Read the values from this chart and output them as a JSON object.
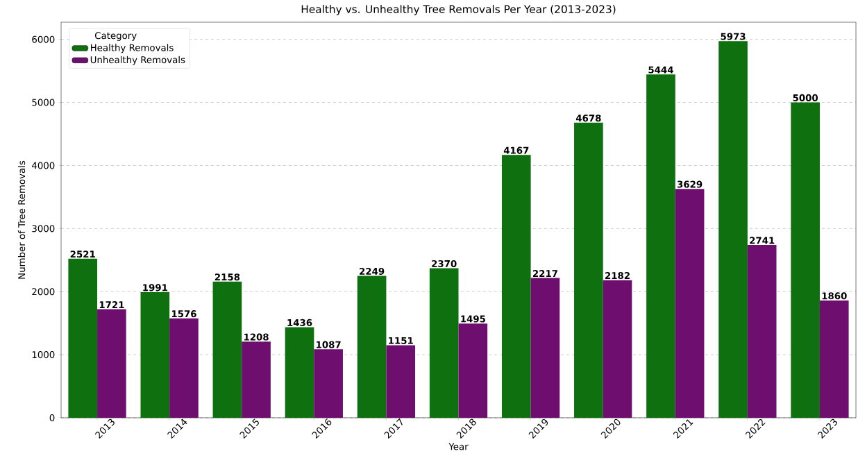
{
  "chart_data": {
    "type": "bar",
    "title": "Healthy vs. Unhealthy Tree Removals Per Year (2013-2023)",
    "xlabel": "Year",
    "ylabel": "Number of Tree Removals",
    "legend_title": "Category",
    "categories": [
      "2013",
      "2014",
      "2015",
      "2016",
      "2017",
      "2018",
      "2019",
      "2020",
      "2021",
      "2022",
      "2023"
    ],
    "series": [
      {
        "name": "Healthy Removals",
        "color": "#0e700e",
        "values": [
          2521,
          1991,
          2158,
          1436,
          2249,
          2370,
          4167,
          4678,
          5444,
          5973,
          5000
        ]
      },
      {
        "name": "Unhealthy Removals",
        "color": "#6e0e6e",
        "values": [
          1721,
          1576,
          1208,
          1087,
          1151,
          1495,
          2217,
          2182,
          3629,
          2741,
          1860
        ]
      }
    ],
    "ylim": [
      0,
      6271.65
    ],
    "yticks": [
      0,
      1000,
      2000,
      3000,
      4000,
      5000,
      6000
    ],
    "grid": "y",
    "legend": "top left",
    "data_labels": true
  }
}
